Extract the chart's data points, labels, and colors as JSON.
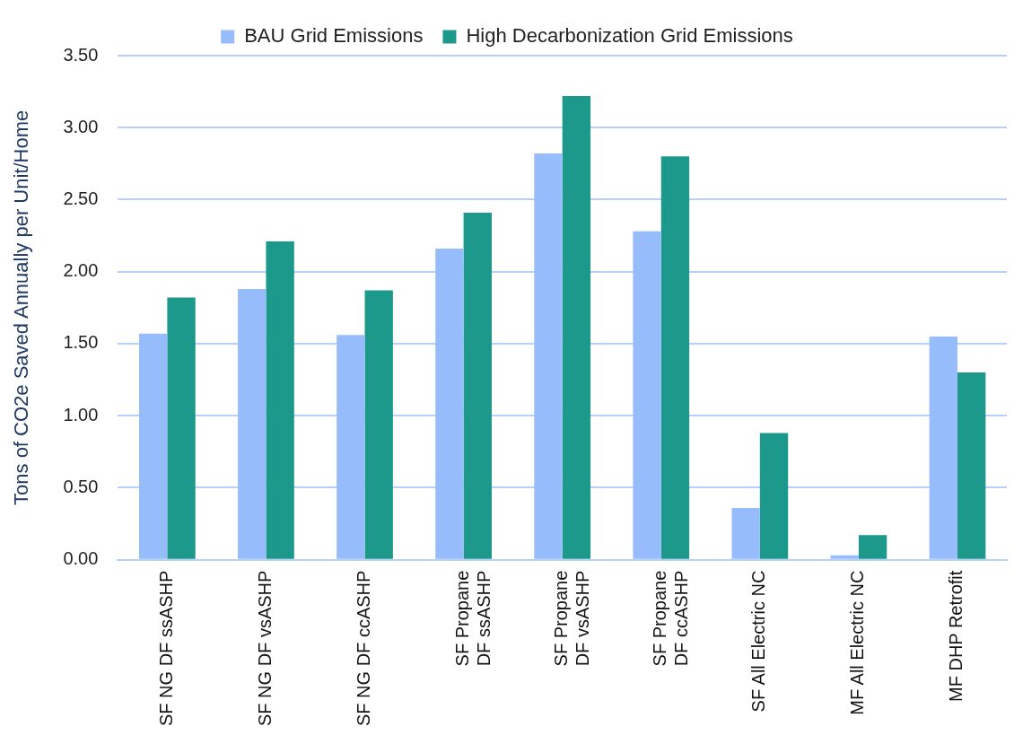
{
  "chart_data": {
    "type": "bar",
    "ylabel": "Tons of CO2e Saved Annually per Unit/Home",
    "categories": [
      "SF NG DF ssASHP",
      "SF NG DF vsASHP",
      "SF NG DF ccASHP",
      "SF Propane\nDF ssASHP",
      "SF Propane\nDF vsASHP",
      "SF Propane\nDF ccASHP",
      "SF All Electric NC",
      "MF All Electric NC",
      "MF DHP Retrofit"
    ],
    "series": [
      {
        "name": "BAU Grid Emissions",
        "color": "#97bcfb",
        "values": [
          1.57,
          1.88,
          1.56,
          2.16,
          2.82,
          2.28,
          0.36,
          0.03,
          1.55
        ]
      },
      {
        "name": "High Decarbonization Grid Emissions",
        "color": "#1c998a",
        "values": [
          1.82,
          2.21,
          1.87,
          2.41,
          3.22,
          2.8,
          0.88,
          0.17,
          1.3
        ]
      }
    ],
    "ylim": [
      0,
      3.5
    ],
    "yticks": [
      {
        "value": 0,
        "label": "0.00"
      },
      {
        "value": 0.5,
        "label": "0.50"
      },
      {
        "value": 1,
        "label": "1.00"
      },
      {
        "value": 1.5,
        "label": "1.50"
      },
      {
        "value": 2,
        "label": "2.00"
      },
      {
        "value": 2.5,
        "label": "2.50"
      },
      {
        "value": 3,
        "label": "3.00"
      },
      {
        "value": 3.5,
        "label": "3.50"
      }
    ],
    "grid": "y",
    "legend": "top"
  }
}
